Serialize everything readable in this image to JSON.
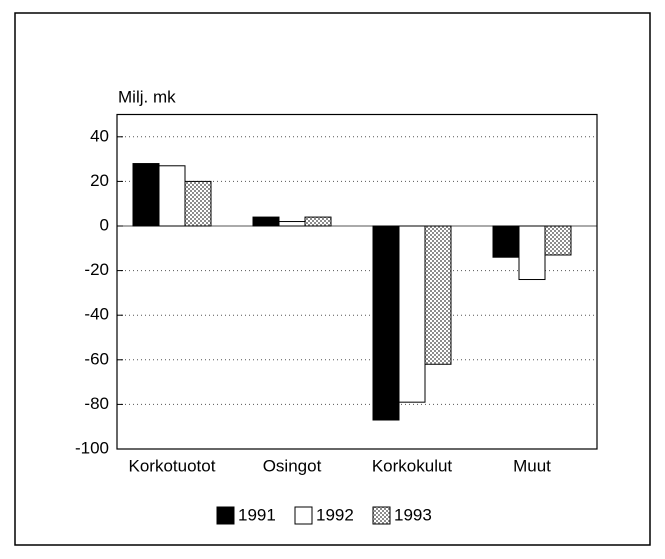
{
  "chart_data": {
    "type": "bar",
    "ylabel": "Milj. mk",
    "categories": [
      "Korkotuotot",
      "Osingot",
      "Korkokulut",
      "Muut"
    ],
    "series": [
      {
        "name": "1991",
        "color": "#000000",
        "values": [
          28,
          4,
          -87,
          -14
        ]
      },
      {
        "name": "1992",
        "color": "#ffffff",
        "values": [
          27,
          2,
          -79,
          -24
        ]
      },
      {
        "name": "1993",
        "color": "#8c8c8c",
        "values": [
          20,
          4,
          -62,
          -13
        ]
      }
    ],
    "ylim": [
      -100,
      50
    ],
    "yticks": [
      -100,
      -80,
      -60,
      -40,
      -20,
      0,
      20,
      40
    ],
    "grid": true,
    "legend": "bottom"
  }
}
